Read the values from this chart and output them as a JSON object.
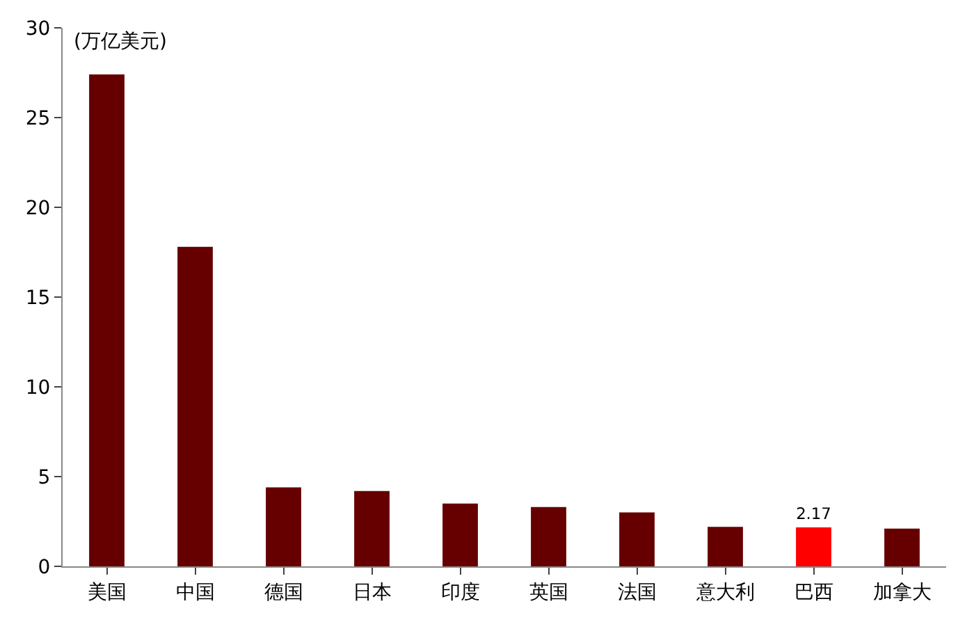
{
  "chart_data": {
    "type": "bar",
    "ylabel": "(万亿美元)",
    "categories": [
      "美国",
      "中国",
      "德国",
      "日本",
      "印度",
      "英国",
      "法国",
      "意大利",
      "巴西",
      "加拿大"
    ],
    "values": [
      27.4,
      17.8,
      4.4,
      4.2,
      3.5,
      3.3,
      3.0,
      2.2,
      2.17,
      2.1
    ],
    "colors": [
      "#660000",
      "#660000",
      "#660000",
      "#660000",
      "#660000",
      "#660000",
      "#660000",
      "#660000",
      "#ff0000",
      "#660000"
    ],
    "value_labels": [
      null,
      null,
      null,
      null,
      null,
      null,
      null,
      null,
      "2.17",
      null
    ],
    "ylim": [
      0,
      30
    ],
    "yticks": [
      0,
      5,
      10,
      15,
      20,
      25,
      30
    ]
  }
}
